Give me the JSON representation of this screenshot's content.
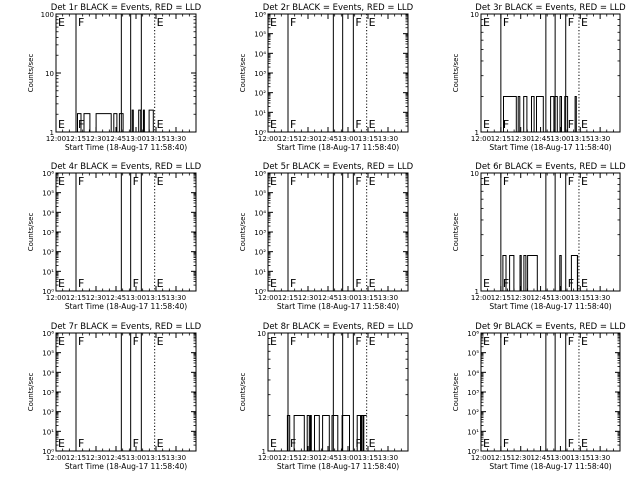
{
  "chart_data": [
    {
      "type": "line",
      "title": "Det 1r BLACK = Events, RED = LLD",
      "xlabel": "Start Time (18-Aug-17 11:58:40)",
      "ylabel": "Counts/sec",
      "y_scale": "log",
      "ylim": [
        1,
        100
      ],
      "y_ticks": [
        {
          "v": 1,
          "label": "1"
        },
        {
          "v": 10,
          "label": "10"
        },
        {
          "v": 100,
          "label": "100"
        }
      ],
      "xlim": [
        "12:00",
        "13:45"
      ],
      "x_ticks": [
        "12:00",
        "12:15",
        "12:30",
        "12:45",
        "13:00",
        "13:15",
        "13:30"
      ],
      "events": [
        {
          "time": "12:00",
          "label": "E",
          "style": "dotted"
        },
        {
          "time": "12:15",
          "label": "F",
          "style": "solid"
        },
        {
          "time": "12:49",
          "label": "",
          "style": "solid"
        },
        {
          "time": "12:56",
          "label": "",
          "style": "solid"
        },
        {
          "time": "13:04",
          "label": "",
          "style": "solid"
        },
        {
          "time": "13:14",
          "label": "E",
          "style": "dotted"
        }
      ],
      "series": [
        {
          "segments": [
            {
              "from": "12:15",
              "to": "12:51",
              "lo": 1,
              "hi": 2.05
            },
            {
              "from": "12:56",
              "to": "13:13",
              "lo": 1,
              "hi": 2.35
            }
          ]
        }
      ]
    },
    {
      "type": "line",
      "title": "Det 2r BLACK = Events, RED = LLD",
      "xlabel": "Start Time (18-Aug-17 11:58:40)",
      "ylabel": "Counts/sec",
      "y_scale": "log",
      "ylim": [
        1,
        1000000
      ],
      "y_ticks": [
        {
          "v": 1,
          "label": "10⁰"
        },
        {
          "v": 10,
          "label": "10¹"
        },
        {
          "v": 100,
          "label": "10²"
        },
        {
          "v": 1000,
          "label": "10³"
        },
        {
          "v": 10000,
          "label": "10⁴"
        },
        {
          "v": 100000,
          "label": "10⁵"
        },
        {
          "v": 1000000,
          "label": "10⁶"
        }
      ],
      "xlim": [
        "12:00",
        "13:45"
      ],
      "x_ticks": [
        "12:00",
        "12:15",
        "12:30",
        "12:45",
        "13:00",
        "13:15",
        "13:30"
      ],
      "events": [
        {
          "time": "12:00",
          "label": "E",
          "style": "dotted"
        },
        {
          "time": "12:15",
          "label": "F",
          "style": "solid"
        },
        {
          "time": "12:49",
          "label": "",
          "style": "solid"
        },
        {
          "time": "12:56",
          "label": "",
          "style": "solid"
        },
        {
          "time": "13:04",
          "label": "F",
          "style": "solid"
        },
        {
          "time": "13:14",
          "label": "E",
          "style": "dotted"
        }
      ],
      "series": [
        {
          "segments": []
        }
      ]
    },
    {
      "type": "line",
      "title": "Det 3r BLACK = Events, RED = LLD",
      "xlabel": "Start Time (18-Aug-17 11:58:40)",
      "ylabel": "Counts/sec",
      "y_scale": "log",
      "ylim": [
        1,
        10
      ],
      "y_ticks": [
        {
          "v": 1,
          "label": "1"
        },
        {
          "v": 10,
          "label": "10"
        }
      ],
      "xlim": [
        "12:00",
        "13:45"
      ],
      "x_ticks": [
        "12:00",
        "12:15",
        "12:30",
        "12:45",
        "13:00",
        "13:15",
        "13:30"
      ],
      "events": [
        {
          "time": "12:00",
          "label": "E",
          "style": "dotted"
        },
        {
          "time": "12:15",
          "label": "F",
          "style": "solid"
        },
        {
          "time": "12:49",
          "label": "",
          "style": "solid"
        },
        {
          "time": "12:56",
          "label": "",
          "style": "solid"
        },
        {
          "time": "13:04",
          "label": "F",
          "style": "solid"
        },
        {
          "time": "13:14",
          "label": "E",
          "style": "dotted"
        }
      ],
      "series": [
        {
          "segments": [
            {
              "from": "12:15",
              "to": "13:14",
              "lo": 1,
              "hi": 2
            }
          ]
        }
      ]
    },
    {
      "type": "line",
      "title": "Det 4r BLACK = Events, RED = LLD",
      "xlabel": "Start Time (18-Aug-17 11:58:40)",
      "ylabel": "Counts/sec",
      "y_scale": "log",
      "ylim": [
        1,
        1000000
      ],
      "y_ticks": [
        {
          "v": 1,
          "label": "10⁰"
        },
        {
          "v": 10,
          "label": "10¹"
        },
        {
          "v": 100,
          "label": "10²"
        },
        {
          "v": 1000,
          "label": "10³"
        },
        {
          "v": 10000,
          "label": "10⁴"
        },
        {
          "v": 100000,
          "label": "10⁵"
        },
        {
          "v": 1000000,
          "label": "10⁶"
        }
      ],
      "xlim": [
        "12:00",
        "13:45"
      ],
      "x_ticks": [
        "12:00",
        "12:15",
        "12:30",
        "12:45",
        "13:00",
        "13:15",
        "13:30"
      ],
      "events": [
        {
          "time": "12:00",
          "label": "E",
          "style": "dotted"
        },
        {
          "time": "12:15",
          "label": "F",
          "style": "solid"
        },
        {
          "time": "12:49",
          "label": "",
          "style": "solid"
        },
        {
          "time": "12:56",
          "label": "F",
          "style": "solid"
        },
        {
          "time": "13:04",
          "label": "",
          "style": "solid"
        },
        {
          "time": "13:14",
          "label": "E",
          "style": "dotted"
        }
      ],
      "series": [
        {
          "segments": []
        }
      ]
    },
    {
      "type": "line",
      "title": "Det 5r BLACK = Events, RED = LLD",
      "xlabel": "Start Time (18-Aug-17 11:58:40)",
      "ylabel": "Counts/sec",
      "y_scale": "log",
      "ylim": [
        1,
        1000000
      ],
      "y_ticks": [
        {
          "v": 1,
          "label": "10⁰"
        },
        {
          "v": 10,
          "label": "10¹"
        },
        {
          "v": 100,
          "label": "10²"
        },
        {
          "v": 1000,
          "label": "10³"
        },
        {
          "v": 10000,
          "label": "10⁴"
        },
        {
          "v": 100000,
          "label": "10⁵"
        },
        {
          "v": 1000000,
          "label": "10⁶"
        }
      ],
      "xlim": [
        "12:00",
        "13:45"
      ],
      "x_ticks": [
        "12:00",
        "12:15",
        "12:30",
        "12:45",
        "13:00",
        "13:15",
        "13:30"
      ],
      "events": [
        {
          "time": "12:00",
          "label": "E",
          "style": "dotted"
        },
        {
          "time": "12:15",
          "label": "F",
          "style": "solid"
        },
        {
          "time": "12:49",
          "label": "",
          "style": "solid"
        },
        {
          "time": "12:56",
          "label": "",
          "style": "solid"
        },
        {
          "time": "13:04",
          "label": "F",
          "style": "solid"
        },
        {
          "time": "13:14",
          "label": "E",
          "style": "dotted"
        }
      ],
      "series": [
        {
          "segments": []
        }
      ]
    },
    {
      "type": "line",
      "title": "Det 6r BLACK = Events, RED = LLD",
      "xlabel": "Start Time (18-Aug-17 11:58:40)",
      "ylabel": "Counts/sec",
      "y_scale": "log",
      "ylim": [
        1,
        10
      ],
      "y_ticks": [
        {
          "v": 1,
          "label": "1"
        },
        {
          "v": 10,
          "label": "10"
        }
      ],
      "xlim": [
        "12:00",
        "13:45"
      ],
      "x_ticks": [
        "12:00",
        "12:15",
        "12:30",
        "12:45",
        "13:00",
        "13:15",
        "13:30"
      ],
      "events": [
        {
          "time": "12:00",
          "label": "E",
          "style": "dotted"
        },
        {
          "time": "12:15",
          "label": "F",
          "style": "solid"
        },
        {
          "time": "12:49",
          "label": "",
          "style": "solid"
        },
        {
          "time": "12:56",
          "label": "",
          "style": "solid"
        },
        {
          "time": "13:04",
          "label": "F",
          "style": "solid"
        },
        {
          "time": "13:14",
          "label": "E",
          "style": "dotted"
        }
      ],
      "series": [
        {
          "segments": [
            {
              "from": "12:15",
              "to": "12:46",
              "lo": 1,
              "hi": 2
            },
            {
              "from": "12:58",
              "to": "13:13",
              "lo": 1,
              "hi": 2
            }
          ]
        }
      ]
    },
    {
      "type": "line",
      "title": "Det 7r BLACK = Events, RED = LLD",
      "xlabel": "Start Time (18-Aug-17 11:58:40)",
      "ylabel": "Counts/sec",
      "y_scale": "log",
      "ylim": [
        1,
        1000000
      ],
      "y_ticks": [
        {
          "v": 1,
          "label": "10⁰"
        },
        {
          "v": 10,
          "label": "10¹"
        },
        {
          "v": 100,
          "label": "10²"
        },
        {
          "v": 1000,
          "label": "10³"
        },
        {
          "v": 10000,
          "label": "10⁴"
        },
        {
          "v": 100000,
          "label": "10⁵"
        },
        {
          "v": 1000000,
          "label": "10⁶"
        }
      ],
      "xlim": [
        "12:00",
        "13:45"
      ],
      "x_ticks": [
        "12:00",
        "12:15",
        "12:30",
        "12:45",
        "13:00",
        "13:15",
        "13:30"
      ],
      "events": [
        {
          "time": "12:00",
          "label": "E",
          "style": "dotted"
        },
        {
          "time": "12:15",
          "label": "F",
          "style": "solid"
        },
        {
          "time": "12:49",
          "label": "",
          "style": "solid"
        },
        {
          "time": "12:56",
          "label": "F",
          "style": "solid"
        },
        {
          "time": "13:04",
          "label": "",
          "style": "solid"
        },
        {
          "time": "13:14",
          "label": "E",
          "style": "dotted"
        }
      ],
      "series": [
        {
          "segments": []
        }
      ]
    },
    {
      "type": "line",
      "title": "Det 8r BLACK = Events, RED = LLD",
      "xlabel": "Start Time (18-Aug-17 11:58:40)",
      "ylabel": "Counts/sec",
      "y_scale": "log",
      "ylim": [
        1,
        10
      ],
      "y_ticks": [
        {
          "v": 1,
          "label": "1"
        },
        {
          "v": 10,
          "label": "10"
        }
      ],
      "xlim": [
        "12:00",
        "13:45"
      ],
      "x_ticks": [
        "12:00",
        "12:15",
        "12:30",
        "12:45",
        "13:00",
        "13:15",
        "13:30"
      ],
      "events": [
        {
          "time": "12:00",
          "label": "E",
          "style": "dotted"
        },
        {
          "time": "12:15",
          "label": "F",
          "style": "solid"
        },
        {
          "time": "12:49",
          "label": "",
          "style": "solid"
        },
        {
          "time": "12:56",
          "label": "",
          "style": "solid"
        },
        {
          "time": "13:04",
          "label": "F",
          "style": "solid"
        },
        {
          "time": "13:14",
          "label": "E",
          "style": "dotted"
        }
      ],
      "series": [
        {
          "segments": [
            {
              "from": "12:12",
              "to": "13:14",
              "lo": 1,
              "hi": 2
            }
          ]
        }
      ]
    },
    {
      "type": "line",
      "title": "Det 9r BLACK = Events, RED = LLD",
      "xlabel": "Start Time (18-Aug-17 11:58:40)",
      "ylabel": "Counts/sec",
      "y_scale": "log",
      "ylim": [
        1,
        1000000
      ],
      "y_ticks": [
        {
          "v": 1,
          "label": "10⁰"
        },
        {
          "v": 10,
          "label": "10¹"
        },
        {
          "v": 100,
          "label": "10²"
        },
        {
          "v": 1000,
          "label": "10³"
        },
        {
          "v": 10000,
          "label": "10⁴"
        },
        {
          "v": 100000,
          "label": "10⁵"
        },
        {
          "v": 1000000,
          "label": "10⁶"
        }
      ],
      "xlim": [
        "12:00",
        "13:45"
      ],
      "x_ticks": [
        "12:00",
        "12:15",
        "12:30",
        "12:45",
        "13:00",
        "13:15",
        "13:30"
      ],
      "events": [
        {
          "time": "12:00",
          "label": "E",
          "style": "dotted"
        },
        {
          "time": "12:15",
          "label": "F",
          "style": "solid"
        },
        {
          "time": "12:49",
          "label": "",
          "style": "solid"
        },
        {
          "time": "12:56",
          "label": "",
          "style": "solid"
        },
        {
          "time": "13:04",
          "label": "F",
          "style": "solid"
        },
        {
          "time": "13:14",
          "label": "E",
          "style": "dotted"
        }
      ],
      "series": [
        {
          "segments": []
        }
      ]
    }
  ]
}
